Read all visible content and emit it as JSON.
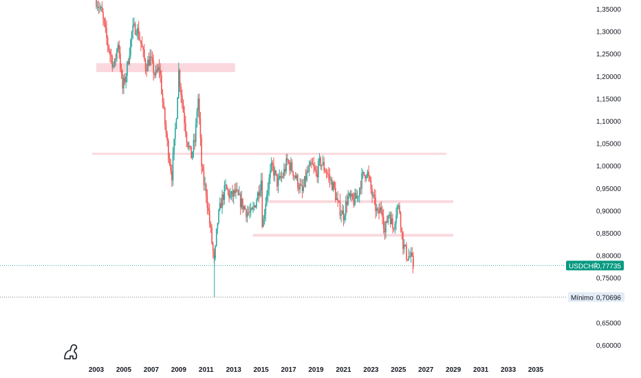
{
  "chart_data": {
    "type": "candlestick",
    "symbol": "USDCHF",
    "last_price": "0,77735",
    "minimum_label": "Mínimo",
    "minimum_value": "0,70696",
    "colors": {
      "up": "#26a69a",
      "down": "#ef5350",
      "zone": "#f8c7cf",
      "price_tag": "#089981",
      "min_tag": "#e3ecf7",
      "axis_text": "#131722",
      "dotted_line": "#26a69a",
      "min_line": "#787b86"
    },
    "y_ticks": [
      "1,35000",
      "1,30000",
      "1,25000",
      "1,20000",
      "1,15000",
      "1,10000",
      "1,05000",
      "1,00000",
      "0,95000",
      "0,90000",
      "0,85000",
      "0,80000",
      "0,75000",
      "0,65000",
      "0,60000"
    ],
    "y_tick_values": [
      1.35,
      1.3,
      1.25,
      1.2,
      1.15,
      1.1,
      1.05,
      1.0,
      0.95,
      0.9,
      0.85,
      0.8,
      0.75,
      0.65,
      0.6
    ],
    "x_ticks": [
      "2003",
      "2005",
      "2007",
      "2009",
      "2011",
      "2013",
      "2015",
      "2017",
      "2019",
      "2021",
      "2023",
      "2025",
      "2027",
      "2029",
      "2031",
      "2033",
      "2035"
    ],
    "x_tick_values": [
      2003,
      2005,
      2007,
      2009,
      2011,
      2013,
      2015,
      2017,
      2019,
      2021,
      2023,
      2025,
      2027,
      2029,
      2031,
      2033,
      2035
    ],
    "xlim": [
      2003,
      2035
    ],
    "ylim": [
      0.595,
      1.36
    ],
    "zones": [
      {
        "x0": 2003.0,
        "x1": 2013.1,
        "y0": 1.209,
        "y1": 1.229
      },
      {
        "x0": 2002.7,
        "x1": 2028.5,
        "y0": 1.025,
        "y1": 1.029
      },
      {
        "x0": 2015.5,
        "x1": 2029.0,
        "y0": 0.917,
        "y1": 0.923
      },
      {
        "x0": 2014.4,
        "x1": 2029.0,
        "y0": 0.842,
        "y1": 0.848
      }
    ],
    "series": [
      {
        "x": 2003.0,
        "y": 1.37
      },
      {
        "x": 2003.4,
        "y": 1.34
      },
      {
        "x": 2003.7,
        "y": 1.29
      },
      {
        "x": 2004.0,
        "y": 1.25
      },
      {
        "x": 2004.3,
        "y": 1.22
      },
      {
        "x": 2004.6,
        "y": 1.28
      },
      {
        "x": 2004.9,
        "y": 1.17
      },
      {
        "x": 2005.2,
        "y": 1.21
      },
      {
        "x": 2005.6,
        "y": 1.3
      },
      {
        "x": 2005.9,
        "y": 1.31
      },
      {
        "x": 2006.2,
        "y": 1.28
      },
      {
        "x": 2006.6,
        "y": 1.22
      },
      {
        "x": 2006.9,
        "y": 1.24
      },
      {
        "x": 2007.3,
        "y": 1.2
      },
      {
        "x": 2007.6,
        "y": 1.22
      },
      {
        "x": 2007.9,
        "y": 1.12
      },
      {
        "x": 2008.2,
        "y": 1.04
      },
      {
        "x": 2008.5,
        "y": 0.98
      },
      {
        "x": 2008.8,
        "y": 1.1
      },
      {
        "x": 2009.0,
        "y": 1.21
      },
      {
        "x": 2009.3,
        "y": 1.13
      },
      {
        "x": 2009.6,
        "y": 1.06
      },
      {
        "x": 2009.9,
        "y": 1.02
      },
      {
        "x": 2010.2,
        "y": 1.06
      },
      {
        "x": 2010.4,
        "y": 1.16
      },
      {
        "x": 2010.7,
        "y": 0.98
      },
      {
        "x": 2011.0,
        "y": 0.94
      },
      {
        "x": 2011.3,
        "y": 0.86
      },
      {
        "x": 2011.6,
        "y": 0.78
      },
      {
        "x": 2011.8,
        "y": 0.87
      },
      {
        "x": 2012.1,
        "y": 0.92
      },
      {
        "x": 2012.4,
        "y": 0.95
      },
      {
        "x": 2012.8,
        "y": 0.93
      },
      {
        "x": 2013.1,
        "y": 0.94
      },
      {
        "x": 2013.5,
        "y": 0.92
      },
      {
        "x": 2013.9,
        "y": 0.9
      },
      {
        "x": 2014.3,
        "y": 0.89
      },
      {
        "x": 2014.7,
        "y": 0.93
      },
      {
        "x": 2015.0,
        "y": 0.97
      },
      {
        "x": 2015.1,
        "y": 0.86
      },
      {
        "x": 2015.4,
        "y": 0.94
      },
      {
        "x": 2015.8,
        "y": 1.0
      },
      {
        "x": 2016.2,
        "y": 0.96
      },
      {
        "x": 2016.6,
        "y": 0.98
      },
      {
        "x": 2016.9,
        "y": 1.01
      },
      {
        "x": 2017.3,
        "y": 0.99
      },
      {
        "x": 2017.7,
        "y": 0.96
      },
      {
        "x": 2018.0,
        "y": 0.94
      },
      {
        "x": 2018.3,
        "y": 0.98
      },
      {
        "x": 2018.7,
        "y": 1.0
      },
      {
        "x": 2019.0,
        "y": 0.98
      },
      {
        "x": 2019.3,
        "y": 1.01
      },
      {
        "x": 2019.7,
        "y": 0.99
      },
      {
        "x": 2020.0,
        "y": 0.97
      },
      {
        "x": 2020.3,
        "y": 0.95
      },
      {
        "x": 2020.6,
        "y": 0.91
      },
      {
        "x": 2021.0,
        "y": 0.89
      },
      {
        "x": 2021.3,
        "y": 0.93
      },
      {
        "x": 2021.7,
        "y": 0.92
      },
      {
        "x": 2022.0,
        "y": 0.93
      },
      {
        "x": 2022.3,
        "y": 0.97
      },
      {
        "x": 2022.7,
        "y": 0.99
      },
      {
        "x": 2022.9,
        "y": 0.96
      },
      {
        "x": 2023.2,
        "y": 0.92
      },
      {
        "x": 2023.5,
        "y": 0.89
      },
      {
        "x": 2023.8,
        "y": 0.91
      },
      {
        "x": 2024.0,
        "y": 0.85
      },
      {
        "x": 2024.3,
        "y": 0.9
      },
      {
        "x": 2024.6,
        "y": 0.86
      },
      {
        "x": 2024.9,
        "y": 0.91
      },
      {
        "x": 2025.1,
        "y": 0.9
      },
      {
        "x": 2025.3,
        "y": 0.83
      },
      {
        "x": 2025.6,
        "y": 0.8
      },
      {
        "x": 2025.9,
        "y": 0.795
      },
      {
        "x": 2026.1,
        "y": 0.7774
      }
    ]
  }
}
